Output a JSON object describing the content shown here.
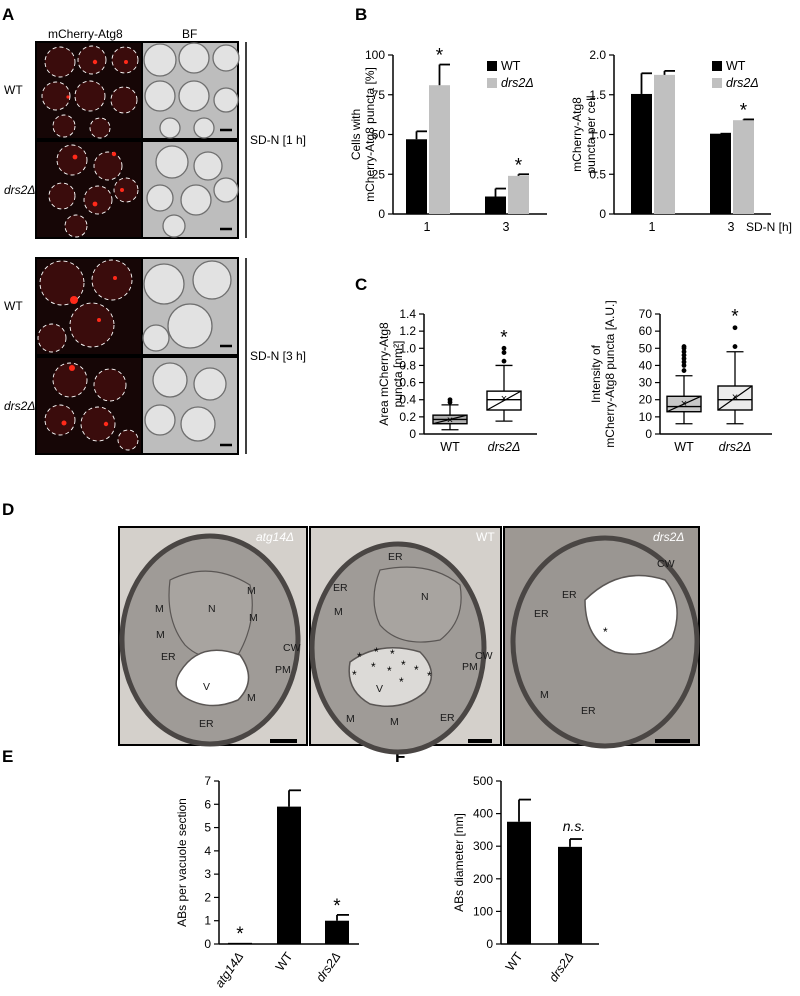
{
  "panel_letters": {
    "a": "A",
    "b": "B",
    "c": "C",
    "d": "D",
    "e": "E",
    "f": "F"
  },
  "panel_a": {
    "col_mcherry": "mCherry-Atg8",
    "col_bf": "BF",
    "rows": [
      "WT",
      "drs2Δ",
      "WT",
      "drs2Δ"
    ],
    "cond_1h": "SD-N [1 h]",
    "cond_3h": "SD-N [3 h]"
  },
  "panel_d": {
    "titles": [
      "atg14Δ",
      "WT",
      "drs2Δ"
    ],
    "labels_em1": [
      "N",
      "M",
      "M",
      "M",
      "M",
      "ER",
      "CW",
      "PM",
      "V",
      "M",
      "ER"
    ],
    "labels_em2": [
      "ER",
      "ER",
      "N",
      "M",
      "V",
      "CW",
      "PM",
      "M",
      "M",
      "ER"
    ],
    "labels_em3": [
      "CW",
      "ER",
      "ER",
      "M",
      "ER"
    ],
    "asterisk": "*"
  },
  "sig_mark": "*",
  "ns_mark": "n.s.",
  "chart_data": [
    {
      "id": "B-left",
      "type": "bar",
      "ylabel": "Cells with mCherry-Atg8 puncta [%]",
      "categories": [
        "1",
        "3"
      ],
      "ylim": [
        0,
        100
      ],
      "yticks": [
        "0",
        "25",
        "50",
        "75",
        "100"
      ],
      "series": [
        {
          "name": "WT",
          "color": "#000000",
          "values": [
            47,
            11
          ],
          "errors": [
            5,
            5
          ]
        },
        {
          "name": "drs2Δ",
          "color": "#c0c0c0",
          "values": [
            81,
            24
          ],
          "errors": [
            13,
            1
          ]
        }
      ],
      "significance": [
        "*",
        "*"
      ]
    },
    {
      "id": "B-right",
      "type": "bar",
      "ylabel": "mCherry-Atg8 puncta per cell",
      "xlabel": "SD-N [h]",
      "categories": [
        "1",
        "3"
      ],
      "ylim": [
        0,
        2.0
      ],
      "yticks": [
        "0",
        "0.5",
        "1.0",
        "1.5",
        "2.0"
      ],
      "series": [
        {
          "name": "WT",
          "color": "#000000",
          "values": [
            1.51,
            1.01
          ],
          "errors": [
            0.26,
            0
          ]
        },
        {
          "name": "drs2Δ",
          "color": "#c0c0c0",
          "values": [
            1.75,
            1.18
          ],
          "errors": [
            0.05,
            0.01
          ]
        }
      ],
      "significance": [
        "",
        "*"
      ]
    },
    {
      "id": "C-left",
      "type": "box",
      "ylabel": "Area mCherry-Atg8 puncta [nm²]",
      "categories": [
        "WT",
        "drs2Δ"
      ],
      "ylim": [
        0,
        1.4
      ],
      "yticks": [
        "0",
        "0.2",
        "0.4",
        "0.6",
        "0.8",
        "1.0",
        "1.2",
        "1.4"
      ],
      "boxes": [
        {
          "name": "WT",
          "min": 0.05,
          "q1": 0.12,
          "median": 0.17,
          "q3": 0.22,
          "max": 0.34,
          "mean": 0.17,
          "outliers": [
            0.37,
            0.4
          ],
          "fill": "#b0b0b0"
        },
        {
          "name": "drs2Δ",
          "min": 0.15,
          "q1": 0.28,
          "median": 0.4,
          "q3": 0.5,
          "max": 0.8,
          "mean": 0.42,
          "outliers": [
            0.85,
            0.95,
            1.0
          ],
          "fill": "#ffffff"
        }
      ],
      "significance": [
        "",
        "*"
      ]
    },
    {
      "id": "C-right",
      "type": "box",
      "ylabel": "Intensity of mCherry-Atg8 puncta [A.U.]",
      "categories": [
        "WT",
        "drs2Δ"
      ],
      "ylim": [
        0,
        70
      ],
      "yticks": [
        "0",
        "10",
        "20",
        "30",
        "40",
        "50",
        "60",
        "70"
      ],
      "boxes": [
        {
          "name": "WT",
          "min": 6,
          "q1": 13,
          "median": 16,
          "q3": 22,
          "max": 34,
          "mean": 18,
          "outliers": [
            37,
            40,
            42,
            44,
            46,
            48,
            50,
            51
          ],
          "fill": "#c8c8c8"
        },
        {
          "name": "drs2Δ",
          "min": 6,
          "q1": 14,
          "median": 20,
          "q3": 28,
          "max": 48,
          "mean": 22,
          "outliers": [
            51,
            62
          ],
          "fill": "#ebebeb"
        }
      ],
      "significance": [
        "",
        "*"
      ]
    },
    {
      "id": "E",
      "type": "bar",
      "ylabel": "ABs per vacuole section",
      "categories": [
        "atg14Δ",
        "WT",
        "drs2Δ"
      ],
      "ylim": [
        0,
        7
      ],
      "yticks": [
        "0",
        "1",
        "2",
        "3",
        "4",
        "5",
        "6",
        "7"
      ],
      "series": [
        {
          "name": "",
          "color": "#000000",
          "values": [
            0.05,
            5.9,
            1.0
          ],
          "errors": [
            0,
            0.7,
            0.25
          ]
        }
      ],
      "significance": [
        "*",
        "",
        "*"
      ]
    },
    {
      "id": "F",
      "type": "bar",
      "ylabel": "ABs diameter [nm]",
      "categories": [
        "WT",
        "drs2Δ"
      ],
      "ylim": [
        0,
        500
      ],
      "yticks": [
        "0",
        "100",
        "200",
        "300",
        "400",
        "500"
      ],
      "series": [
        {
          "name": "",
          "color": "#000000",
          "values": [
            375,
            298
          ],
          "errors": [
            68,
            24
          ]
        }
      ],
      "significance": [
        "",
        "n.s."
      ]
    }
  ]
}
